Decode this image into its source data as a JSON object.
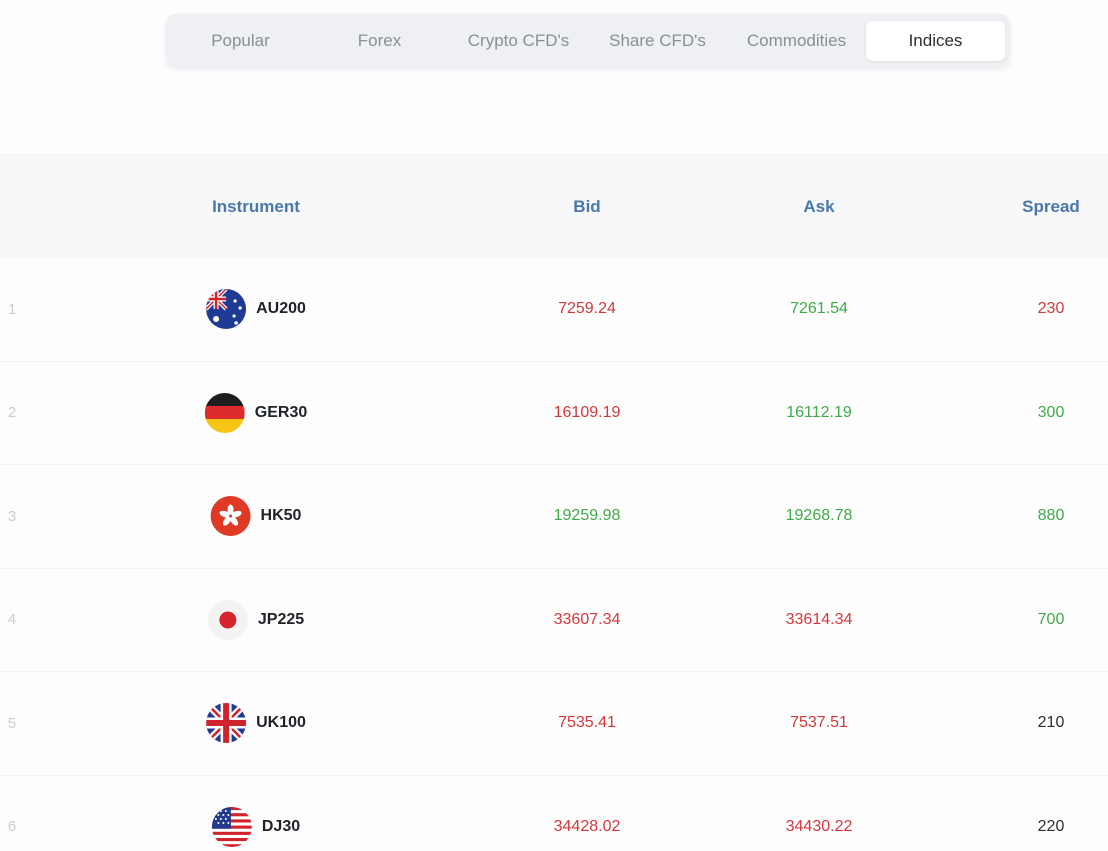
{
  "tabs": [
    {
      "label": "Popular",
      "active": false
    },
    {
      "label": "Forex",
      "active": false
    },
    {
      "label": "Crypto CFD's",
      "active": false
    },
    {
      "label": "Share CFD's",
      "active": false
    },
    {
      "label": "Commodities",
      "active": false
    },
    {
      "label": "Indices",
      "active": true
    }
  ],
  "table": {
    "headers": {
      "instrument": "Instrument",
      "bid": "Bid",
      "ask": "Ask",
      "spread": "Spread"
    },
    "rows": [
      {
        "index": "1",
        "flag": "australia-flag-icon",
        "instrument": "AU200",
        "bid": "7259.24",
        "ask": "7261.54",
        "spread": "230"
      },
      {
        "index": "2",
        "flag": "germany-flag-icon",
        "instrument": "GER30",
        "bid": "16109.19",
        "ask": "16112.19",
        "spread": "300"
      },
      {
        "index": "3",
        "flag": "hong-kong-flag-icon",
        "instrument": "HK50",
        "bid": "19259.98",
        "ask": "19268.78",
        "spread": "880"
      },
      {
        "index": "4",
        "flag": "japan-flag-icon",
        "instrument": "JP225",
        "bid": "33607.34",
        "ask": "33614.34",
        "spread": "700"
      },
      {
        "index": "5",
        "flag": "uk-flag-icon",
        "instrument": "UK100",
        "bid": "7535.41",
        "ask": "7537.51",
        "spread": "210"
      },
      {
        "index": "6",
        "flag": "usa-flag-icon",
        "instrument": "DJ30",
        "bid": "34428.02",
        "ask": "34430.22",
        "spread": "220"
      }
    ]
  },
  "colors": {
    "down": "#d0393c",
    "up": "#3faa48",
    "neutral": "#2b2f33",
    "header_text": "#4a78a8"
  }
}
